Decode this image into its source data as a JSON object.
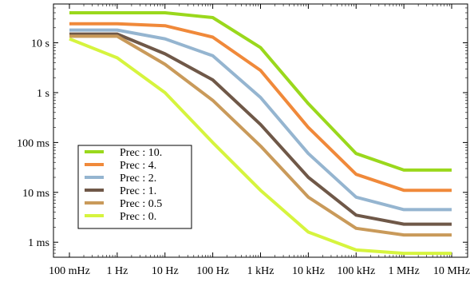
{
  "chart_data": {
    "type": "line",
    "x_scale": "log",
    "y_scale": "log",
    "grid": false,
    "legend_position": "bottom-left",
    "xlabel": "",
    "ylabel": "",
    "x_ticks": [
      {
        "value": 0.1,
        "label": "100 mHz"
      },
      {
        "value": 1,
        "label": "1 Hz"
      },
      {
        "value": 10,
        "label": "10 Hz"
      },
      {
        "value": 100,
        "label": "100 Hz"
      },
      {
        "value": 1000,
        "label": "1 kHz"
      },
      {
        "value": 10000,
        "label": "10 kHz"
      },
      {
        "value": 100000,
        "label": "100 kHz"
      },
      {
        "value": 1000000,
        "label": "1 MHz"
      },
      {
        "value": 10000000,
        "label": "10 MHz"
      }
    ],
    "y_ticks": [
      {
        "value": 0.001,
        "label": "1 ms"
      },
      {
        "value": 0.01,
        "label": "10 ms"
      },
      {
        "value": 0.1,
        "label": "100 ms"
      },
      {
        "value": 1,
        "label": "1 s"
      },
      {
        "value": 10,
        "label": "10 s"
      }
    ],
    "xlim": [
      0.1,
      10000000
    ],
    "ylim": [
      0.0005,
      60
    ],
    "x": [
      0.1,
      1,
      10,
      100,
      1000,
      10000,
      100000,
      1000000,
      10000000
    ],
    "series": [
      {
        "name": "Prec : 10.",
        "color": "#9ad81c",
        "values": [
          40,
          40,
          40,
          32,
          8,
          0.6,
          0.06,
          0.028,
          0.028
        ]
      },
      {
        "name": "Prec : 4.",
        "color": "#f0893a",
        "values": [
          24,
          24,
          22,
          13,
          2.8,
          0.2,
          0.023,
          0.011,
          0.011
        ]
      },
      {
        "name": "Prec : 2.",
        "color": "#95b5d0",
        "values": [
          18,
          18,
          12,
          5.5,
          0.8,
          0.06,
          0.008,
          0.0045,
          0.0045
        ]
      },
      {
        "name": "Prec : 1.",
        "color": "#6f5848",
        "values": [
          15,
          15,
          6,
          1.8,
          0.23,
          0.02,
          0.0035,
          0.0023,
          0.0023
        ]
      },
      {
        "name": "Prec : 0.5",
        "color": "#c99a5a",
        "values": [
          13.5,
          13.5,
          3.7,
          0.7,
          0.085,
          0.008,
          0.0019,
          0.0014,
          0.0014
        ]
      },
      {
        "name": "Prec : 0.",
        "color": "#d6f43e",
        "values": [
          12,
          5,
          1,
          0.1,
          0.011,
          0.0016,
          0.0007,
          0.0006,
          0.0006
        ]
      }
    ]
  }
}
